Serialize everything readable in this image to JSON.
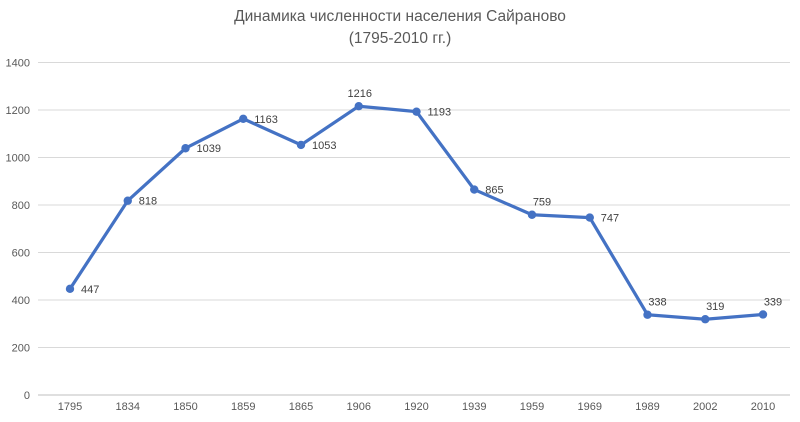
{
  "title": {
    "line1": "Динамика численности населения Сайраново",
    "line2": "(1795-2010 гг.)"
  },
  "chart_data": {
    "type": "line",
    "title": "Динамика численности населения Сайраново (1795-2010 гг.)",
    "categories": [
      "1795",
      "1834",
      "1850",
      "1859",
      "1865",
      "1906",
      "1920",
      "1939",
      "1959",
      "1969",
      "1989",
      "2002",
      "2010"
    ],
    "values": [
      447,
      818,
      1039,
      1163,
      1053,
      1216,
      1193,
      865,
      759,
      747,
      338,
      319,
      339
    ],
    "label_positions": [
      "right",
      "right",
      "right",
      "right",
      "right",
      "above",
      "right",
      "right",
      "above-right",
      "right",
      "above-right",
      "above-right",
      "above-right"
    ],
    "xlabel": "",
    "ylabel": "",
    "ylim": [
      0,
      1400
    ],
    "ytick_step": 200,
    "yticks": [
      0,
      200,
      400,
      600,
      800,
      1000,
      1200,
      1400
    ],
    "grid": true,
    "legend": "none",
    "colors": {
      "series": "#4472C4",
      "grid": "#D9D9D9",
      "axis_line": "#BFBFBF",
      "axis_labels": "#595959",
      "data_labels": "#404040",
      "title": "#595959",
      "background": "#FFFFFF"
    }
  }
}
